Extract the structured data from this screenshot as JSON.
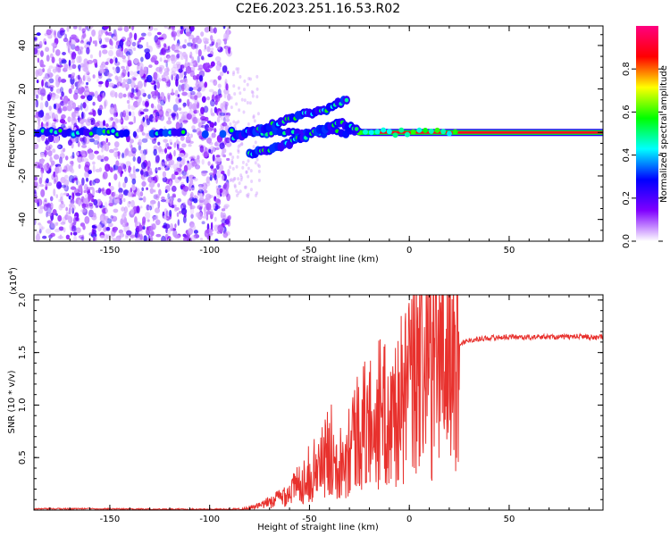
{
  "title": "C2E6.2023.251.16.53.R02",
  "chart_data": [
    {
      "type": "heatmap",
      "xlabel": "Height of straight line (km)",
      "ylabel": "Frequency (Hz)",
      "xlim": [
        -188,
        97
      ],
      "ylim": [
        -50,
        49
      ],
      "x_ticks": [
        -150,
        -100,
        -50,
        0,
        50
      ],
      "y_ticks": [
        -40,
        -20,
        0,
        20,
        40
      ],
      "colorbar": {
        "label": "Normalized spectral amplitude",
        "range": [
          0,
          1
        ],
        "ticks": [
          0.0,
          0.2,
          0.4,
          0.6,
          0.8
        ],
        "colors": [
          "#ffffff",
          "#8000ff",
          "#0000ff",
          "#00ffff",
          "#00ff00",
          "#ffff00",
          "#ff0000",
          "#ff0080"
        ]
      },
      "features": {
        "noise_region_x": [
          -188,
          -90
        ],
        "carrier_line": {
          "freq": 0,
          "x_range": [
            -188,
            97
          ],
          "strong_from_x": -25
        },
        "upper_branch": {
          "points": [
            [
              -88,
              -2
            ],
            [
              -70,
              3
            ],
            [
              -50,
              9
            ],
            [
              -40,
              11
            ],
            [
              -30,
              16
            ]
          ]
        },
        "lower_branch": {
          "points": [
            [
              -80,
              -10
            ],
            [
              -60,
              -5
            ],
            [
              -45,
              1
            ],
            [
              -35,
              4
            ],
            [
              -25,
              2
            ]
          ]
        }
      }
    },
    {
      "type": "line",
      "xlabel": "Height of straight line (km)",
      "ylabel": "SNR (10 * v/v)",
      "y_scale_label": "(x10",
      "y_scale_exp": "4",
      "y_scale_close": ")",
      "xlim": [
        -188,
        97
      ],
      "ylim": [
        0,
        20500
      ],
      "x_ticks": [
        -150,
        -100,
        -50,
        0,
        50
      ],
      "y_ticks": [
        0.5,
        1.0,
        1.5,
        2.0
      ],
      "y_tick_labels": [
        "0.5",
        "1.0",
        "1.5",
        "2.0"
      ],
      "color": "#e8312d",
      "series": [
        {
          "x": [
            -188,
            -160,
            -130,
            -110,
            -95,
            -85,
            -75,
            -68,
            -62,
            -55,
            -50,
            -46,
            -42,
            -38,
            -34,
            -30,
            -26,
            -22,
            -18,
            -14,
            -10,
            -6,
            -3,
            0,
            3,
            5,
            7,
            9,
            12,
            16,
            20,
            25,
            30,
            40,
            50,
            60,
            70,
            80,
            88,
            92,
            97
          ],
          "y": [
            50,
            80,
            20,
            15,
            20,
            60,
            400,
            900,
            1500,
            2500,
            3500,
            4000,
            5000,
            6000,
            4500,
            6500,
            7500,
            8000,
            8500,
            9500,
            8000,
            10000,
            10500,
            11500,
            12500,
            13500,
            12000,
            13000,
            14000,
            14800,
            15300,
            15800,
            16200,
            16400,
            16500,
            16450,
            16500,
            16500,
            16550,
            16400,
            16500
          ]
        }
      ],
      "features": {
        "spike_x": 6,
        "spike_y": 20500
      }
    }
  ]
}
